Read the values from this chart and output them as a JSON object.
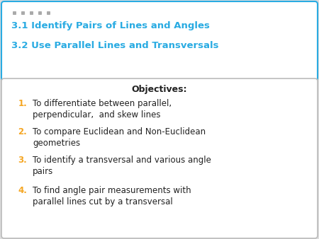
{
  "title_line1": "3.1 Identify Pairs of Lines and Angles",
  "title_line2": "3.2 Use Parallel Lines and Transversals",
  "title_color": "#29ABE2",
  "title_bg": "#FFFFFF",
  "title_border": "#29ABE2",
  "objectives_header": "Objectives:",
  "objectives_header_color": "#222222",
  "objectives_bg": "#FFFFFF",
  "objectives_border": "#BBBBBB",
  "number_color": "#F5A623",
  "text_color": "#222222",
  "items": [
    "To differentiate between parallel,\nperpendicular,  and skew lines",
    "To compare Euclidean and Non-Euclidean\ngeometries",
    "To identify a transversal and various angle\npairs",
    "To find angle pair measurements with\nparallel lines cut by a transversal"
  ],
  "bg_color": "#DEDEDE",
  "dot_color": "#AAAAAA",
  "font_size_title": 9.5,
  "font_size_body": 8.5,
  "font_size_header": 9.0
}
